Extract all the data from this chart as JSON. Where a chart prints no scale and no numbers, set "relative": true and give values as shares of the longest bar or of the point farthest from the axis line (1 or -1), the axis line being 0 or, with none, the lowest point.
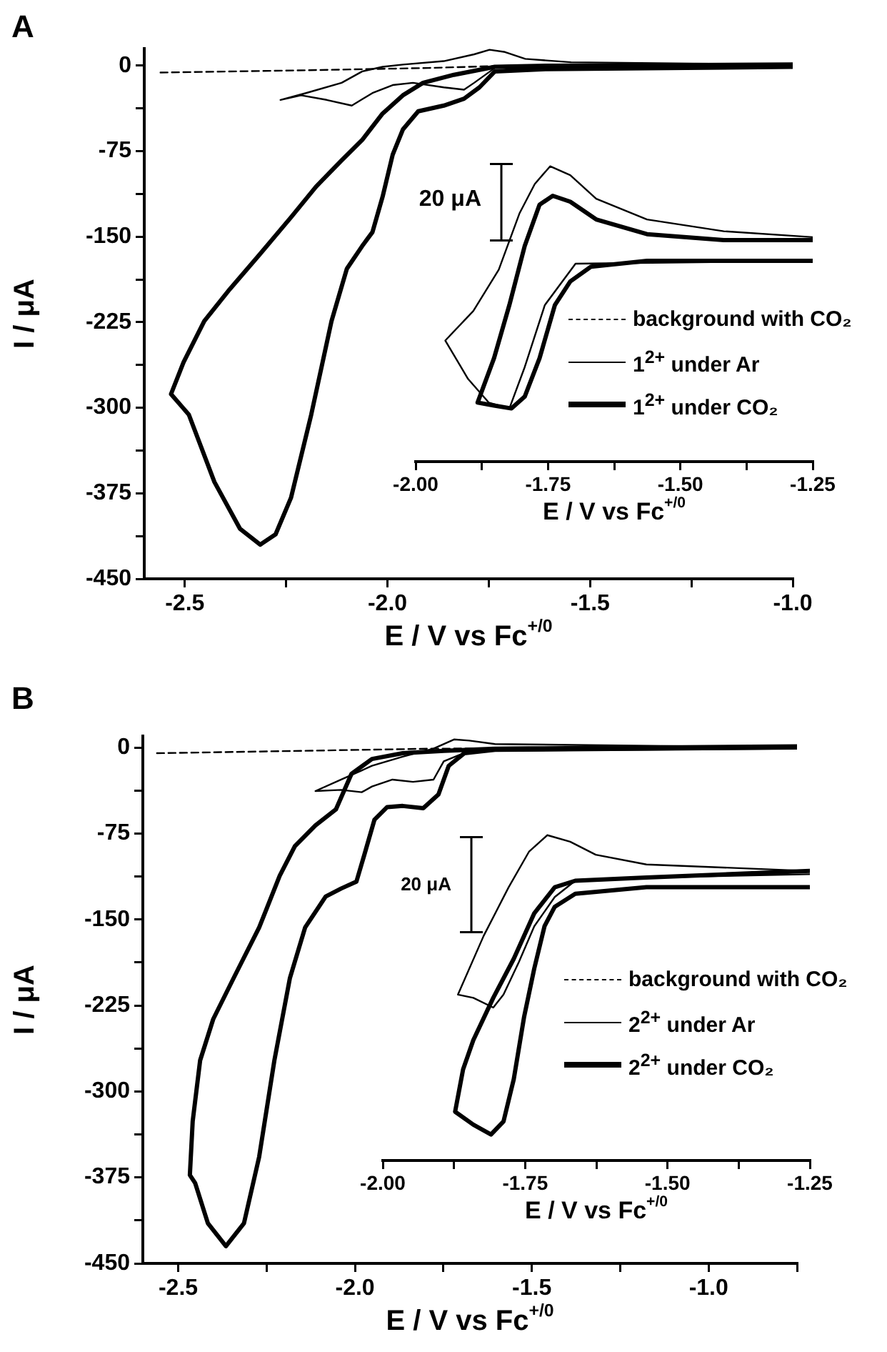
{
  "chart_data": [
    {
      "type": "line",
      "title": "A",
      "xlabel": "E / V vs Fc$^{+/0}$",
      "ylabel": "I / μA",
      "legend": "right",
      "xlim": [
        -2.6,
        -1.0
      ],
      "xticks": [
        -2.5,
        {
          "value": -2.25,
          "label": null
        },
        {
          "value": -2,
          "label": "-2.0"
        },
        {
          "value": -1.75,
          "label": null
        },
        -1.5,
        {
          "value": -1.25,
          "label": null
        },
        {
          "value": -1,
          "label": "-1.0"
        }
      ],
      "ylim": [
        -450,
        15
      ],
      "yticks": [
        0,
        {
          "value": -37.5,
          "label": null
        },
        -75,
        {
          "value": -112.5,
          "label": null
        },
        -150,
        {
          "value": -187.5,
          "label": null
        },
        -225,
        {
          "value": -262.5,
          "label": null
        },
        -300,
        {
          "value": -337.5,
          "label": null
        },
        -375,
        {
          "value": -412.5,
          "label": null
        },
        -450
      ],
      "series": [
        {
          "name": "background with CO₂",
          "color": "#000000",
          "line_style": "dashed",
          "x": [
            -2.56,
            -2.2,
            -1.9,
            -1.7,
            -1.0
          ],
          "values": [
            -6,
            -4,
            -2,
            0,
            1
          ]
        },
        {
          "name": "1$^{2+}$ under Ar",
          "color": "#000000",
          "line_style": "solid",
          "x": [
            -1.0,
            -1.61,
            -1.735,
            -1.786,
            -1.811,
            -1.861,
            -1.937,
            -1.987,
            -2.037,
            -2.088,
            -2.15,
            -2.213,
            -2.264,
            -2.201,
            -2.113,
            -2.062,
            -2.012,
            -1.962,
            -1.861,
            -1.786,
            -1.748,
            -1.71,
            -1.66,
            -1.547,
            -1.0
          ],
          "values": [
            0,
            -1,
            -2,
            -15,
            -21,
            -19,
            -15,
            -17,
            -24,
            -35,
            -30,
            -26,
            -30,
            -24,
            -15,
            -5,
            -1,
            1,
            4,
            10,
            14,
            12,
            6,
            3,
            1
          ]
        },
        {
          "name": "1$^{2+}$ under CO₂",
          "color": "#000000",
          "line_style": "solid",
          "x": [
            -1.0,
            -1.61,
            -1.735,
            -1.773,
            -1.811,
            -1.861,
            -1.924,
            -1.962,
            -1.987,
            -2.012,
            -2.037,
            -2.062,
            -2.1,
            -2.138,
            -2.188,
            -2.238,
            -2.276,
            -2.314,
            -2.364,
            -2.427,
            -2.49,
            -2.534,
            -2.503,
            -2.452,
            -2.389,
            -2.314,
            -2.238,
            -2.176,
            -2.113,
            -2.062,
            -2.012,
            -1.962,
            -1.912,
            -1.836,
            -1.735,
            -1.61,
            -1.0
          ],
          "values": [
            -1,
            -3,
            -5,
            -19,
            -29,
            -35,
            -40,
            -56,
            -78,
            -115,
            -146,
            -158,
            -178,
            -224,
            -306,
            -379,
            -411,
            -420,
            -406,
            -365,
            -306,
            -288,
            -260,
            -224,
            -196,
            -165,
            -133,
            -106,
            -83,
            -65,
            -42,
            -26,
            -15,
            -8,
            -1,
            0,
            1
          ]
        }
      ]
    },
    {
      "type": "line",
      "xlabel": "E / V vs Fc$^{+/0}$",
      "relative": true,
      "annotations": [
        "20 μA"
      ],
      "xlim": [
        -2,
        -1.25
      ],
      "xticks": [
        {
          "value": -2,
          "label": "-2.00"
        },
        {
          "value": -1.875,
          "label": null
        },
        -1.75,
        {
          "value": -1.625,
          "label": null
        },
        {
          "value": -1.5,
          "label": "-1.50"
        },
        {
          "value": -1.375,
          "label": null
        },
        -1.25
      ],
      "series": [
        {
          "color": "#000000",
          "line_style": "solid",
          "x": [
            -1.25,
            -1.698,
            -1.756,
            -1.794,
            -1.823,
            -1.862,
            -1.901,
            -1.944,
            -1.891,
            -1.843,
            -1.804,
            -1.775,
            -1.746,
            -1.708,
            -1.659,
            -1.563,
            -1.418,
            -1.25
          ],
          "values": [
            0.68,
            0.67,
            0.53,
            0.32,
            0.18,
            0.2,
            0.28,
            0.41,
            0.51,
            0.65,
            0.84,
            0.94,
            1.0,
            0.97,
            0.89,
            0.82,
            0.78,
            0.76
          ]
        },
        {
          "color": "#000000",
          "line_style": "solid",
          "x": [
            -1.25,
            -1.563,
            -1.669,
            -1.708,
            -1.737,
            -1.766,
            -1.794,
            -1.819,
            -1.852,
            -1.883,
            -1.852,
            -1.823,
            -1.794,
            -1.766,
            -1.741,
            -1.708,
            -1.659,
            -1.563,
            -1.418,
            -1.25
          ],
          "values": [
            0.68,
            0.68,
            0.66,
            0.61,
            0.53,
            0.35,
            0.22,
            0.18,
            0.19,
            0.2,
            0.35,
            0.53,
            0.73,
            0.87,
            0.9,
            0.88,
            0.82,
            0.77,
            0.75,
            0.75
          ]
        }
      ]
    },
    {
      "type": "line",
      "title": "B",
      "xlabel": "E / V vs Fc$^{+/0}$",
      "ylabel": "I / μA",
      "legend": "right",
      "xlim": [
        -2.6,
        -0.75
      ],
      "xticks": [
        -2.5,
        {
          "value": -2.25,
          "label": null
        },
        {
          "value": -2,
          "label": "-2.0"
        },
        {
          "value": -1.75,
          "label": null
        },
        -1.5,
        {
          "value": -1.25,
          "label": null
        },
        {
          "value": -1,
          "label": "-1.0"
        },
        {
          "value": -0.75,
          "label": null
        }
      ],
      "ylim": [
        -450,
        10
      ],
      "yticks": [
        0,
        {
          "value": -37.5,
          "label": null
        },
        -75,
        {
          "value": -112.5,
          "label": null
        },
        -150,
        {
          "value": -187.5,
          "label": null
        },
        -225,
        {
          "value": -262.5,
          "label": null
        },
        -300,
        {
          "value": -337.5,
          "label": null
        },
        -375,
        {
          "value": -412.5,
          "label": null
        },
        -450
      ],
      "series": [
        {
          "name": "background with CO₂",
          "color": "#000000",
          "line_style": "dashed",
          "x": [
            -2.56,
            -1.778,
            -0.75
          ],
          "values": [
            -5,
            -1,
            0
          ]
        },
        {
          "name": "2$^{2+}$ under Ar",
          "color": "#000000",
          "line_style": "solid",
          "x": [
            -0.75,
            -1.677,
            -1.749,
            -1.778,
            -1.836,
            -1.894,
            -1.952,
            -1.981,
            -2.039,
            -2.112,
            -2.039,
            -1.952,
            -1.865,
            -1.778,
            -1.72,
            -1.677,
            -1.604,
            -0.75
          ],
          "values": [
            -1,
            -3,
            -12,
            -28,
            -30,
            -28,
            -34,
            -39,
            -37,
            -38,
            -28,
            -16,
            -8,
            -1,
            7,
            6,
            3,
            0
          ]
        },
        {
          "name": "2$^{2+}$ under CO₂",
          "color": "#000000",
          "line_style": "solid",
          "x": [
            -0.75,
            -1.604,
            -1.691,
            -1.735,
            -1.764,
            -1.807,
            -1.865,
            -1.909,
            -1.945,
            -1.974,
            -1.996,
            -2.039,
            -2.083,
            -2.141,
            -2.184,
            -2.228,
            -2.271,
            -2.314,
            -2.365,
            -2.416,
            -2.452,
            -2.467,
            -2.459,
            -2.438,
            -2.401,
            -2.343,
            -2.271,
            -2.213,
            -2.17,
            -2.112,
            -2.054,
            -2.01,
            -1.952,
            -1.865,
            -1.749,
            -1.604,
            -0.75
          ],
          "values": [
            0,
            -2,
            -5,
            -16,
            -41,
            -53,
            -51,
            -52,
            -63,
            -94,
            -117,
            -123,
            -130,
            -157,
            -201,
            -273,
            -357,
            -415,
            -435,
            -415,
            -380,
            -373,
            -326,
            -273,
            -237,
            -201,
            -157,
            -112,
            -86,
            -68,
            -54,
            -23,
            -10,
            -5,
            -3,
            -1,
            1
          ]
        }
      ]
    },
    {
      "type": "line",
      "xlabel": "E / V vs Fc$^{+/0}$",
      "relative": true,
      "annotations": [
        "20 μA"
      ],
      "xlim": [
        -2,
        -1.25
      ],
      "xticks": [
        {
          "value": -2,
          "label": "-2.00"
        },
        {
          "value": -1.875,
          "label": null
        },
        -1.75,
        {
          "value": -1.625,
          "label": null
        },
        {
          "value": -1.5,
          "label": "-1.50"
        },
        {
          "value": -1.375,
          "label": null
        },
        -1.25
      ],
      "series": [
        {
          "color": "#000000",
          "line_style": "solid",
          "x": [
            -1.25,
            -1.537,
            -1.662,
            -1.698,
            -1.734,
            -1.761,
            -1.788,
            -1.806,
            -1.841,
            -1.868,
            -1.823,
            -1.779,
            -1.743,
            -1.711,
            -1.671,
            -1.626,
            -1.537,
            -1.25
          ],
          "values": [
            0.88,
            0.87,
            0.86,
            0.81,
            0.72,
            0.61,
            0.51,
            0.47,
            0.5,
            0.51,
            0.69,
            0.84,
            0.95,
            1.0,
            0.98,
            0.94,
            0.91,
            0.89
          ]
        },
        {
          "color": "#000000",
          "line_style": "solid",
          "x": [
            -1.25,
            -1.537,
            -1.662,
            -1.698,
            -1.716,
            -1.734,
            -1.752,
            -1.77,
            -1.788,
            -1.81,
            -1.841,
            -1.873,
            -1.859,
            -1.841,
            -1.806,
            -1.77,
            -1.734,
            -1.698,
            -1.662,
            -1.537,
            -1.25
          ],
          "values": [
            0.84,
            0.84,
            0.82,
            0.78,
            0.72,
            0.59,
            0.44,
            0.25,
            0.12,
            0.08,
            0.11,
            0.15,
            0.28,
            0.37,
            0.5,
            0.62,
            0.76,
            0.84,
            0.86,
            0.87,
            0.89
          ]
        }
      ]
    }
  ]
}
